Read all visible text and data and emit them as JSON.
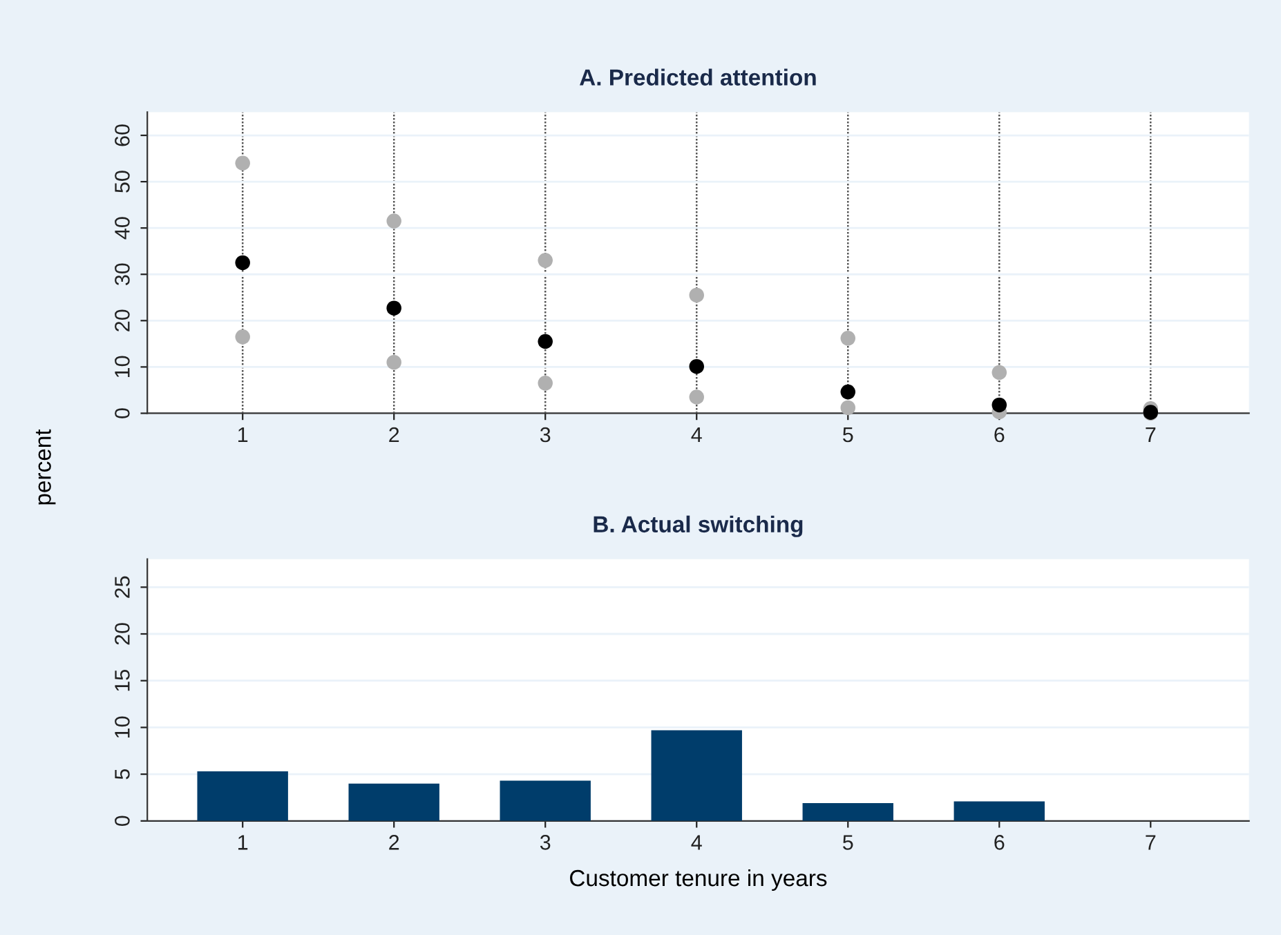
{
  "chart_data": [
    {
      "type": "scatter",
      "title": "A. Predicted attention",
      "ylabel": "percent",
      "x": [
        1,
        2,
        3,
        4,
        5,
        6,
        7
      ],
      "marker": "circle",
      "grid": true,
      "legend": false,
      "xlim": [
        0.37,
        7.65
      ],
      "xticks": [
        1,
        2,
        3,
        4,
        5,
        6,
        7
      ],
      "ylim": [
        0,
        65
      ],
      "yticks": [
        0,
        10,
        20,
        30,
        40,
        50,
        60
      ],
      "series": [
        {
          "color": "#b0b0b0",
          "values": [
            54,
            41.5,
            33,
            25.5,
            16.2,
            8.8,
            1.0
          ]
        },
        {
          "color": "#b0b0b0",
          "values": [
            16.5,
            11,
            6.5,
            3.5,
            1.2,
            0.3,
            0
          ]
        },
        {
          "color": "#000000",
          "values": [
            32.5,
            22.7,
            15.5,
            10.1,
            4.6,
            1.8,
            0.2
          ]
        }
      ]
    },
    {
      "type": "bar",
      "title": "B. Actual switching",
      "xlabel": "Customer tenure in years",
      "x": [
        1,
        2,
        3,
        4,
        5,
        6,
        7
      ],
      "grid": "y",
      "legend": false,
      "xlim": [
        0.37,
        7.65
      ],
      "xticks": [
        1,
        2,
        3,
        4,
        5,
        6,
        7
      ],
      "ylim": [
        0,
        28
      ],
      "yticks": [
        0,
        5,
        10,
        15,
        20,
        25
      ],
      "series": [
        {
          "color": "#003d6b",
          "values": [
            5.3,
            4.0,
            4.3,
            9.7,
            1.9,
            2.1,
            0
          ]
        }
      ]
    }
  ]
}
